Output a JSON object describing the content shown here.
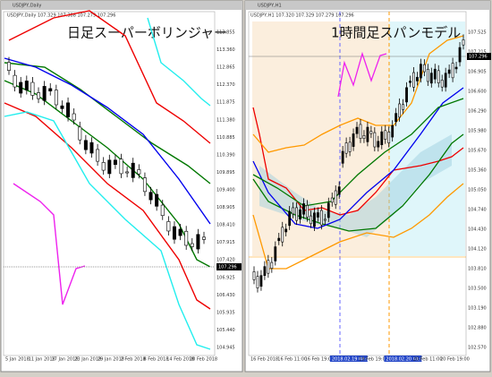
{
  "left": {
    "window_title": "USDJPY,Daily",
    "info": "USDJPY,Daily  107.329 107.388 107.279 107.296",
    "big_title": "日足スーパーボリンジャー",
    "price_tag": "107.296",
    "yticks": [
      "113.855",
      "113.360",
      "112.865",
      "112.370",
      "111.875",
      "111.380",
      "110.885",
      "110.390",
      "109.895",
      "109.400",
      "108.905",
      "108.410",
      "107.915",
      "107.420",
      "106.925",
      "106.430",
      "105.935",
      "105.440",
      "104.945"
    ],
    "xticks": [
      "5 Jan 2018",
      "11 Jan 2018",
      "17 Jan 2018",
      "23 Jan 2018",
      "29 Jan 2018",
      "2 Feb 2018",
      "8 Feb 2018",
      "14 Feb 2018",
      "20 Feb 2018"
    ]
  },
  "right": {
    "window_title": "USDJPY,H1",
    "info": "USDJPY,H1  107.320 107.329 107.279 107.296",
    "big_title": "1時間足スパンモデル",
    "price_tag": "107.296",
    "yticks": [
      "107.525",
      "107.215",
      "106.905",
      "106.600",
      "106.290",
      "105.980",
      "105.670",
      "105.360",
      "105.050",
      "104.740",
      "104.430",
      "104.120",
      "103.810",
      "103.500",
      "103.190",
      "102.880",
      "102.570"
    ],
    "xticks": [
      "16 Feb 2018",
      "16 Feb 11:00",
      "16 Feb 19:00",
      "2018.02.19 08:00",
      "19 Feb 19:00",
      "2018.02.20 01:00",
      "20 Feb 11:00",
      "20 Feb 19:00"
    ]
  }
}
